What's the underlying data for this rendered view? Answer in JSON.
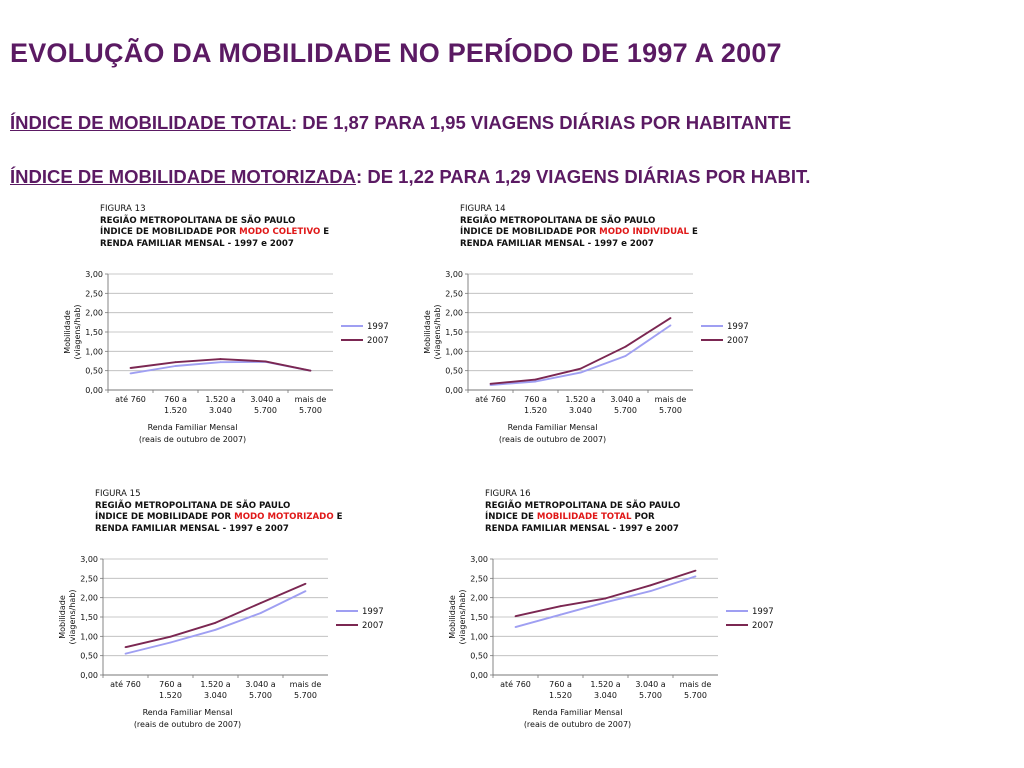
{
  "title": "EVOLUÇÃO DA MOBILIDADE NO PERÍODO DE 1997 A 2007",
  "line1": {
    "label": "ÍNDICE DE MOBILIDADE TOTAL",
    "rest": ": DE 1,87 PARA 1,95 VIAGENS DIÁRIAS POR HABITANTE"
  },
  "line2": {
    "label": "ÍNDICE DE MOBILIDADE MOTORIZADA",
    "rest": ": DE 1,22 PARA 1,29 VIAGENS DIÁRIAS POR HABIT."
  },
  "colors": {
    "title": "#5b1a63",
    "s1997": "#9f9ff2",
    "s2007": "#7b2752",
    "highlight": "#e01818"
  },
  "chart_data": [
    {
      "type": "line",
      "figure": "FIGURA 13",
      "heading": [
        "REGIÃO METROPOLITANA DE SÃO PAULO",
        "ÍNDICE DE MOBILIDADE POR ",
        "MODO COLETIVO",
        " E",
        "RENDA FAMILIAR MENSAL - 1997 e 2007"
      ],
      "ylabel": [
        "Mobilidade",
        "(viagens/hab)"
      ],
      "xlabel": [
        "Renda Familiar Mensal",
        "(reais de outubro de 2007)"
      ],
      "categories": [
        [
          "até 760"
        ],
        [
          "760 a",
          "1.520"
        ],
        [
          "1.520 a",
          "3.040"
        ],
        [
          "3.040 a",
          "5.700"
        ],
        [
          "mais de",
          "5.700"
        ]
      ],
      "yticks": [
        "0,00",
        "0,50",
        "1,00",
        "1,50",
        "2,00",
        "2,50",
        "3,00"
      ],
      "ylim": [
        0,
        3
      ],
      "series": [
        {
          "name": "1997",
          "values": [
            0.43,
            0.62,
            0.72,
            0.73,
            0.5
          ]
        },
        {
          "name": "2007",
          "values": [
            0.57,
            0.72,
            0.8,
            0.74,
            0.5
          ]
        }
      ]
    },
    {
      "type": "line",
      "figure": "FIGURA 14",
      "heading": [
        "REGIÃO METROPOLITANA DE SÃO PAULO",
        "ÍNDICE DE MOBILIDADE POR ",
        "MODO INDIVIDUAL",
        " E",
        "RENDA FAMILIAR MENSAL - 1997 e 2007"
      ],
      "ylabel": [
        "Mobilidade",
        "(viagens/hab)"
      ],
      "xlabel": [
        "Renda Familiar Mensal",
        "(reais de outubro de 2007)"
      ],
      "categories": [
        [
          "até 760"
        ],
        [
          "760 a",
          "1.520"
        ],
        [
          "1.520 a",
          "3.040"
        ],
        [
          "3.040 a",
          "5.700"
        ],
        [
          "mais de",
          "5.700"
        ]
      ],
      "yticks": [
        "0,00",
        "0,50",
        "1,00",
        "1,50",
        "2,00",
        "2,50",
        "3,00"
      ],
      "ylim": [
        0,
        3
      ],
      "series": [
        {
          "name": "1997",
          "values": [
            0.13,
            0.22,
            0.45,
            0.88,
            1.67
          ]
        },
        {
          "name": "2007",
          "values": [
            0.16,
            0.27,
            0.55,
            1.12,
            1.86
          ]
        }
      ]
    },
    {
      "type": "line",
      "figure": "FIGURA 15",
      "heading": [
        "REGIÃO METROPOLITANA DE SÃO PAULO",
        "ÍNDICE DE MOBILIDADE POR ",
        "MODO MOTORIZADO",
        " E",
        "RENDA FAMILIAR MENSAL - 1997 e 2007"
      ],
      "ylabel": [
        "Mobilidade",
        "(viagens/hab)"
      ],
      "xlabel": [
        "Renda Familiar Mensal",
        "(reais de outubro de 2007)"
      ],
      "categories": [
        [
          "até 760"
        ],
        [
          "760 a",
          "1.520"
        ],
        [
          "1.520 a",
          "3.040"
        ],
        [
          "3.040 a",
          "5.700"
        ],
        [
          "mais de",
          "5.700"
        ]
      ],
      "yticks": [
        "0,00",
        "0,50",
        "1,00",
        "1,50",
        "2,00",
        "2,50",
        "3,00"
      ],
      "ylim": [
        0,
        3
      ],
      "series": [
        {
          "name": "1997",
          "values": [
            0.55,
            0.84,
            1.17,
            1.6,
            2.17
          ]
        },
        {
          "name": "2007",
          "values": [
            0.72,
            0.99,
            1.35,
            1.86,
            2.36
          ]
        }
      ]
    },
    {
      "type": "line",
      "figure": "FIGURA 16",
      "heading": [
        "REGIÃO METROPOLITANA DE SÃO PAULO",
        "ÍNDICE DE ",
        "MOBILIDADE  TOTAL",
        " POR",
        "RENDA FAMILIAR MENSAL - 1997 e 2007"
      ],
      "ylabel": [
        "Mobilidade",
        "(viagens/hab)"
      ],
      "xlabel": [
        "Renda Familiar Mensal",
        "(reais de outubro de 2007)"
      ],
      "categories": [
        [
          "até 760"
        ],
        [
          "760 a",
          "1.520"
        ],
        [
          "1.520 a",
          "3.040"
        ],
        [
          "3.040 a",
          "5.700"
        ],
        [
          "mais de",
          "5.700"
        ]
      ],
      "yticks": [
        "0,00",
        "0,50",
        "1,00",
        "1,50",
        "2,00",
        "2,50",
        "3,00"
      ],
      "ylim": [
        0,
        3
      ],
      "series": [
        {
          "name": "1997",
          "values": [
            1.24,
            1.56,
            1.88,
            2.17,
            2.55
          ]
        },
        {
          "name": "2007",
          "values": [
            1.52,
            1.78,
            1.98,
            2.32,
            2.7
          ]
        }
      ]
    }
  ]
}
